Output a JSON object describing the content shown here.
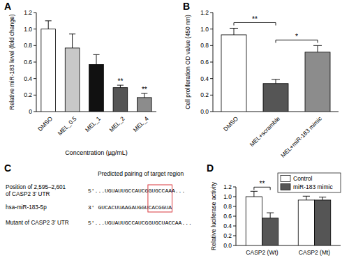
{
  "chart_data": [
    {
      "type": "bar",
      "title": "A",
      "y_label": "Relative miR-183 level (fold change)",
      "x_label": "Concentration (µg/mL)",
      "categories": [
        "DMSO",
        "MEL_0.5",
        "MEL_1",
        "MEL_2",
        "MEL_4"
      ],
      "values": [
        1.0,
        0.77,
        0.57,
        0.29,
        0.17
      ],
      "errors": [
        0.1,
        0.17,
        0.12,
        0.03,
        0.05
      ],
      "colors": [
        "#ffffff",
        "#c8c8c8",
        "#111111",
        "#555555",
        "#8c8c8c"
      ],
      "ylim": [
        0,
        1.2
      ],
      "yticks": [
        0,
        0.2,
        0.4,
        0.6,
        0.8,
        {
          "value": 1,
          "label": "1.0"
        },
        1.2
      ],
      "grid": false,
      "annotations": [
        {
          "text": "**",
          "category": "MEL_2"
        },
        {
          "text": "**",
          "category": "MEL_4"
        }
      ]
    },
    {
      "type": "bar",
      "title": "B",
      "y_label": "Cell proliferation OD value (450 nm)",
      "categories": [
        "DMSO",
        "MEL+scramble",
        "MEL+miR-183 mimic"
      ],
      "values": [
        0.93,
        0.34,
        0.72
      ],
      "errors": [
        0.08,
        0.05,
        0.08
      ],
      "colors": [
        "#ffffff",
        "#555555",
        "#8c8c8c"
      ],
      "ylim": [
        0,
        1.2
      ],
      "yticks": [
        {
          "value": 0,
          "label": "0.0"
        },
        0.2,
        0.4,
        0.6,
        0.8,
        {
          "value": 1,
          "label": "1.0"
        },
        1.2
      ],
      "grid": false,
      "annotations": [
        {
          "text": "**",
          "between": [
            "DMSO",
            "MEL+scramble"
          ]
        },
        {
          "text": "*",
          "between": [
            "MEL+scramble",
            "MEL+miR-183 mimic"
          ]
        }
      ]
    },
    {
      "type": "bar",
      "title": "D",
      "y_label": "Relative luciferase activity",
      "categories": [
        "CASP2 (Wt)",
        "CASP2 (Mt)"
      ],
      "series": [
        {
          "name": "Control",
          "color": "#ffffff",
          "values": [
            1.0,
            0.93
          ],
          "errors": [
            0.11,
            0.08
          ]
        },
        {
          "name": "miR-183 mimic",
          "color": "#555555",
          "values": [
            0.56,
            0.93
          ],
          "errors": [
            0.11,
            0.06
          ]
        }
      ],
      "ylim": [
        0,
        1.2
      ],
      "yticks": [
        {
          "value": 0,
          "label": "0.0"
        },
        0.2,
        0.4,
        0.6,
        0.8,
        {
          "value": 1,
          "label": "1.0"
        },
        1.2
      ],
      "grid": false,
      "legend": "upper right",
      "annotations": [
        {
          "text": "**",
          "category": "CASP2 (Wt)"
        }
      ]
    }
  ],
  "pairing_panel": {
    "title": "C",
    "heading": "Predicted pairing of target region",
    "rows": [
      {
        "label": [
          "Position of 2,595–2,601",
          "of CASP2 3′ UTR"
        ],
        "sequence": "5′...UGUAUUGCCAUCGGUGCCAAA..."
      },
      {
        "label": [
          "hsa-miR-183-5p"
        ],
        "sequence": "3′ GUCACUUAAGAUGGUCACGGUA"
      },
      {
        "label": [
          "Mutant of CASP2 3′ UTR"
        ],
        "sequence": "5′...UGUAUUGCCAUCGGUGCUACCAA..."
      }
    ]
  }
}
